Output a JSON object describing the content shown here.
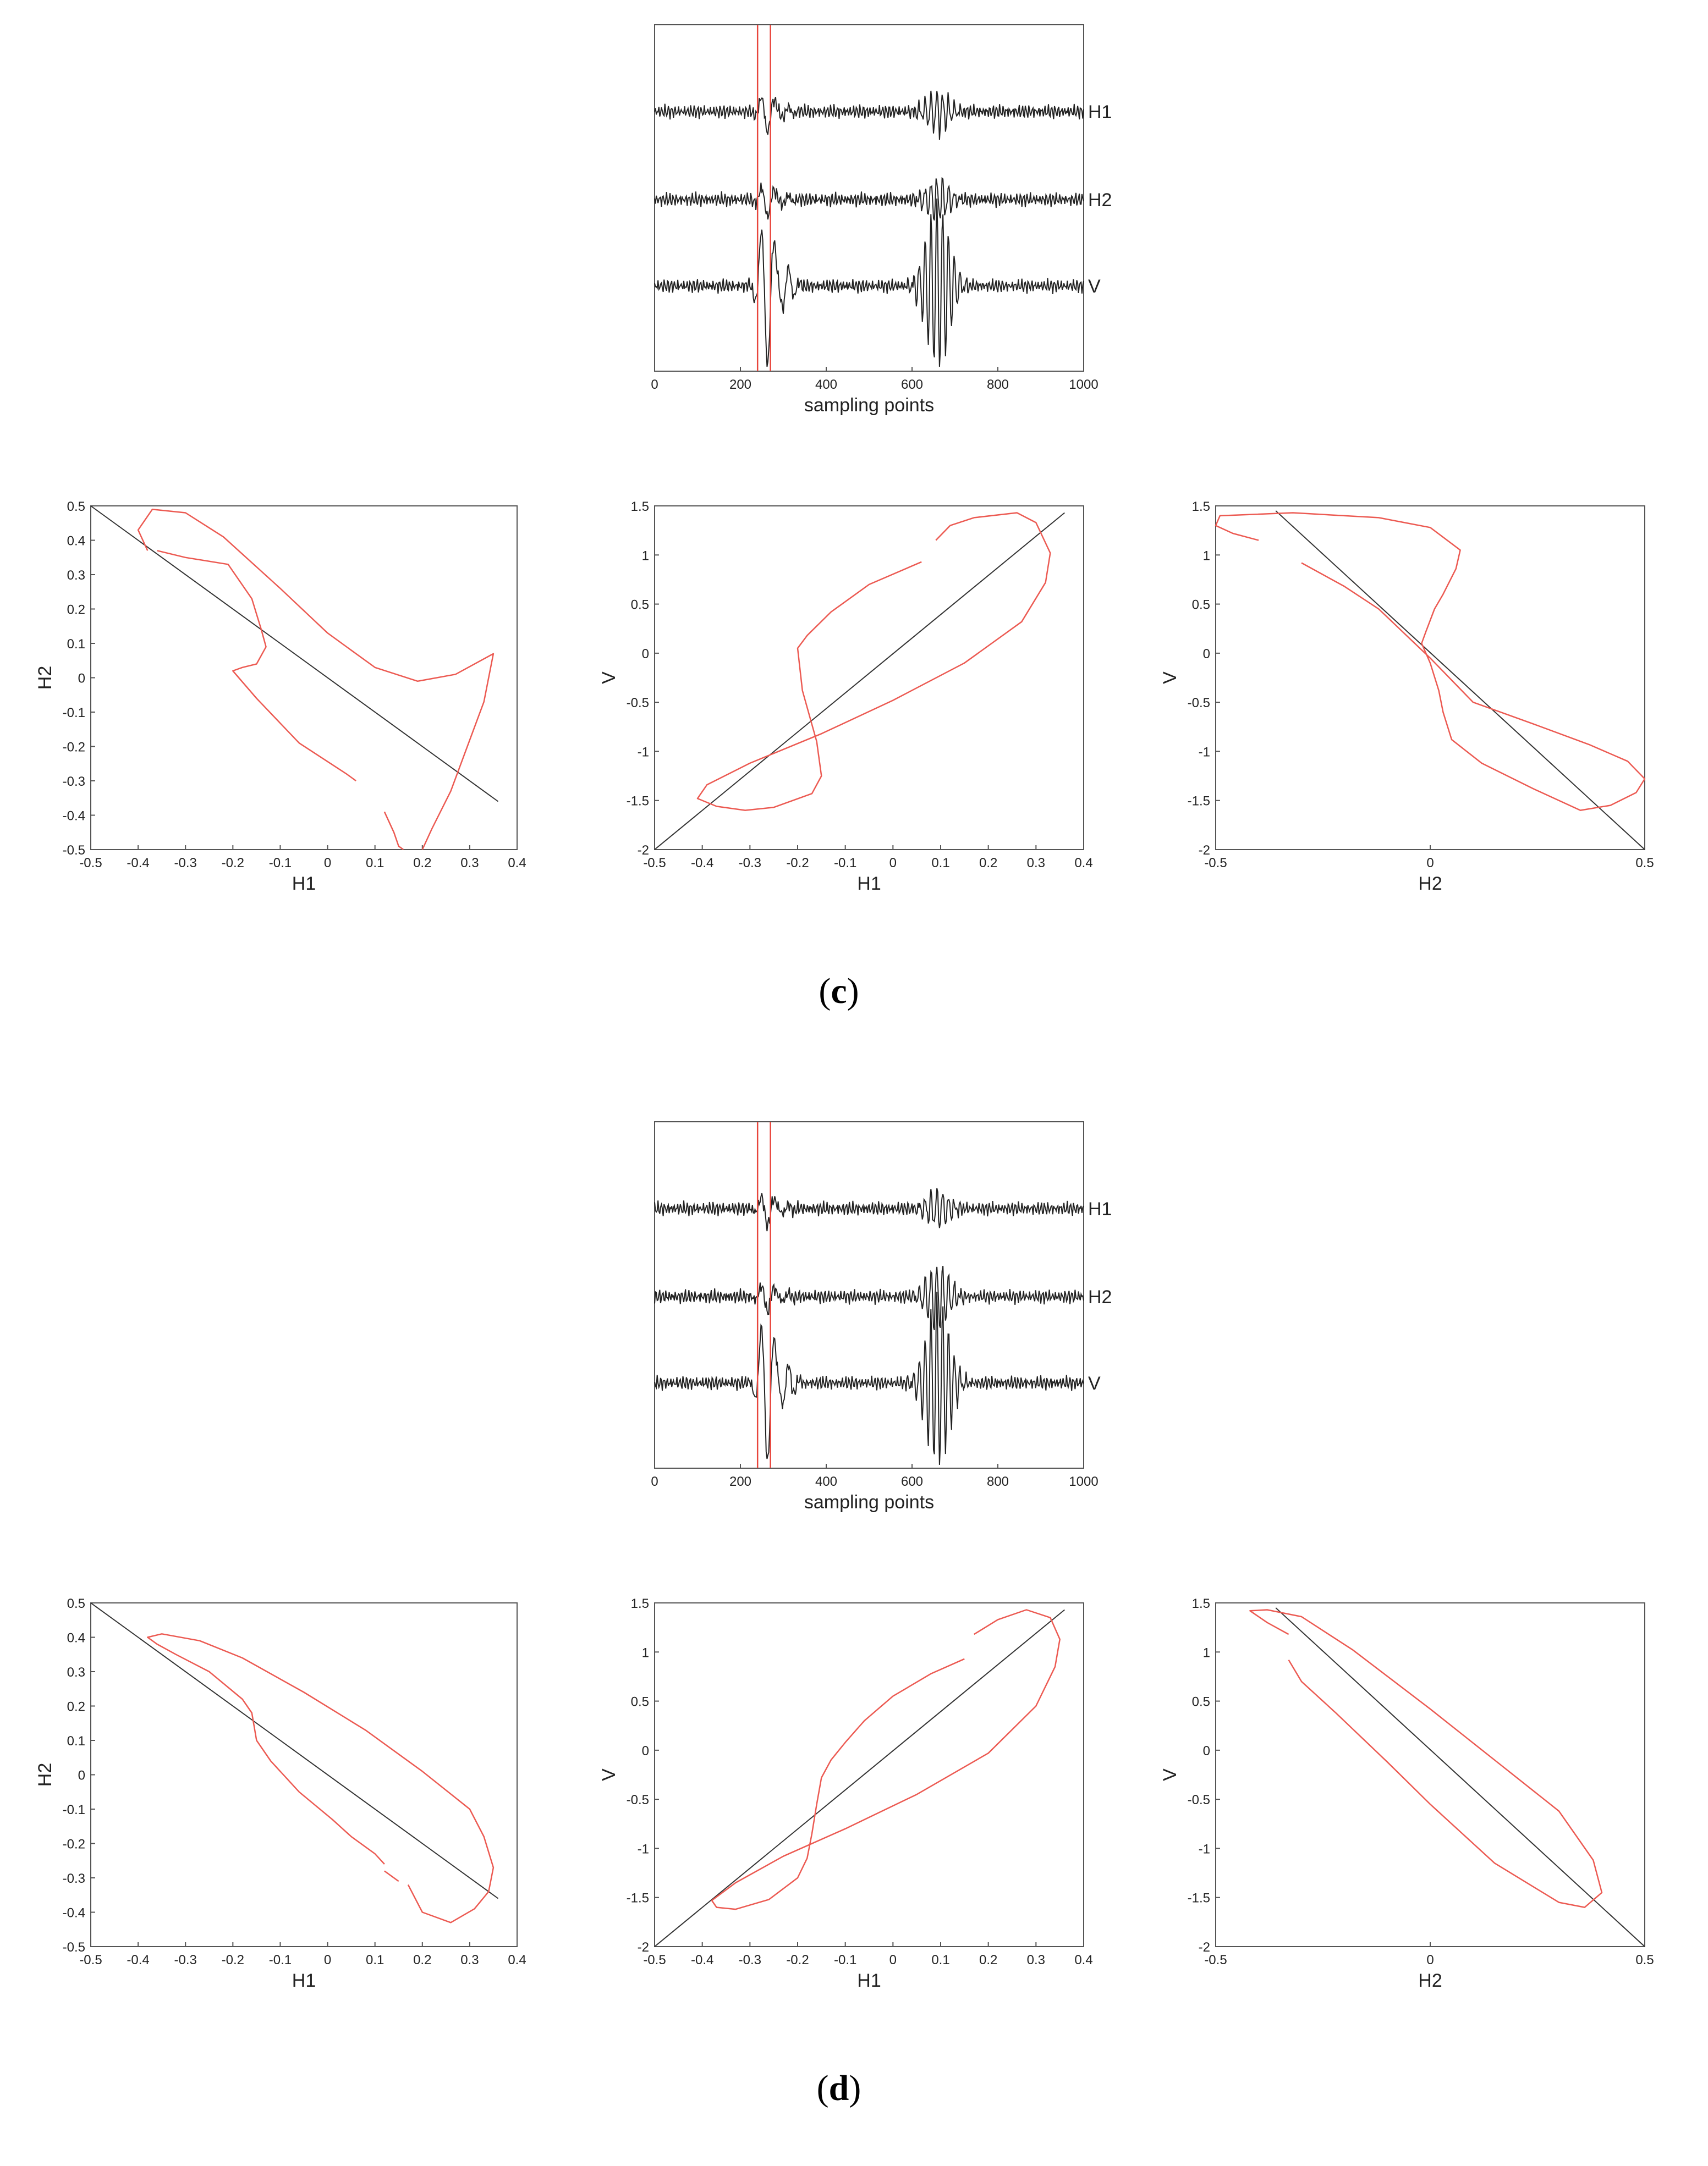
{
  "panels": [
    {
      "caption_letter": "c",
      "waveform": {
        "xlabel": "sampling points",
        "xticks": [
          0,
          200,
          400,
          600,
          800,
          1000
        ],
        "xlim": [
          0,
          1000
        ],
        "window_lines_x": [
          240,
          270
        ],
        "traces": [
          {
            "name": "H1",
            "early_amp": 0.55,
            "late_amp": 0.55
          },
          {
            "name": "H2",
            "early_amp": 0.45,
            "late_amp": 0.55
          },
          {
            "name": "V",
            "early_amp": 2.1,
            "late_amp": 2.2
          }
        ]
      },
      "particle_motion": [
        {
          "xlabel": "H1",
          "ylabel": "H2",
          "xlim": [
            -0.5,
            0.4
          ],
          "ylim": [
            -0.5,
            0.5
          ],
          "xticks": [
            "-0.5",
            "-0.4",
            "-0.3",
            "-0.2",
            "-0.1",
            "0",
            "0.1",
            "0.2",
            "0.3",
            "0.4"
          ],
          "yticks": [
            "0.5",
            "0.4",
            "0.3",
            "0.2",
            "0.1",
            "0",
            "-0.1",
            "-0.2",
            "-0.3",
            "-0.4",
            "-0.5"
          ],
          "line": [
            [
              -0.5,
              0.5
            ],
            [
              0.36,
              -0.36
            ]
          ],
          "curves": [
            [
              [
                -0.38,
                0.37
              ],
              [
                -0.4,
                0.43
              ],
              [
                -0.37,
                0.49
              ],
              [
                -0.3,
                0.48
              ],
              [
                -0.22,
                0.41
              ],
              [
                -0.1,
                0.26
              ],
              [
                0.0,
                0.13
              ],
              [
                0.1,
                0.03
              ],
              [
                0.19,
                -0.01
              ],
              [
                0.27,
                0.01
              ],
              [
                0.35,
                0.07
              ],
              [
                0.33,
                -0.07
              ],
              [
                0.26,
                -0.33
              ],
              [
                0.22,
                -0.44
              ],
              [
                0.2,
                -0.5
              ]
            ],
            [
              [
                0.16,
                -0.5
              ],
              [
                0.15,
                -0.49
              ],
              [
                0.14,
                -0.45
              ],
              [
                0.12,
                -0.39
              ]
            ],
            [
              [
                -0.36,
                0.37
              ],
              [
                -0.3,
                0.35
              ],
              [
                -0.21,
                0.33
              ],
              [
                -0.16,
                0.23
              ],
              [
                -0.14,
                0.14
              ],
              [
                -0.13,
                0.09
              ],
              [
                -0.15,
                0.04
              ],
              [
                -0.18,
                0.03
              ],
              [
                -0.2,
                0.02
              ],
              [
                -0.15,
                -0.06
              ],
              [
                -0.06,
                -0.19
              ],
              [
                0.04,
                -0.28
              ],
              [
                0.06,
                -0.3
              ]
            ]
          ]
        },
        {
          "xlabel": "H1",
          "ylabel": "V",
          "xlim": [
            -0.5,
            0.4
          ],
          "ylim": [
            -2,
            1.5
          ],
          "xticks": [
            "-0.5",
            "-0.4",
            "-0.3",
            "-0.2",
            "-0.1",
            "0",
            "0.1",
            "0.2",
            "0.3",
            "0.4"
          ],
          "yticks": [
            "1.5",
            "1",
            "0.5",
            "0",
            "-0.5",
            "-1",
            "-1.5",
            "-2"
          ],
          "line": [
            [
              -0.5,
              -2.0
            ],
            [
              0.36,
              1.43
            ]
          ],
          "curves": [
            [
              [
                0.06,
                0.93
              ],
              [
                -0.05,
                0.7
              ],
              [
                -0.13,
                0.42
              ],
              [
                -0.18,
                0.18
              ],
              [
                -0.2,
                0.05
              ],
              [
                -0.19,
                -0.38
              ],
              [
                -0.16,
                -0.9
              ],
              [
                -0.15,
                -1.25
              ],
              [
                -0.17,
                -1.43
              ],
              [
                -0.25,
                -1.57
              ],
              [
                -0.31,
                -1.6
              ],
              [
                -0.37,
                -1.56
              ],
              [
                -0.41,
                -1.48
              ],
              [
                -0.39,
                -1.34
              ],
              [
                -0.3,
                -1.12
              ],
              [
                -0.15,
                -0.82
              ],
              [
                0.0,
                -0.48
              ],
              [
                0.15,
                -0.1
              ],
              [
                0.27,
                0.32
              ],
              [
                0.32,
                0.72
              ],
              [
                0.33,
                1.02
              ],
              [
                0.3,
                1.33
              ],
              [
                0.26,
                1.43
              ],
              [
                0.17,
                1.38
              ],
              [
                0.12,
                1.3
              ],
              [
                0.09,
                1.15
              ]
            ]
          ]
        },
        {
          "xlabel": "H2",
          "ylabel": "V",
          "xlim": [
            -0.5,
            0.5
          ],
          "ylim": [
            -2,
            1.5
          ],
          "xticks": [
            "-0.5",
            "0",
            "0.5"
          ],
          "yticks": [
            "1.5",
            "1",
            "0.5",
            "0",
            "-0.5",
            "-1",
            "-1.5",
            "-2"
          ],
          "line": [
            [
              -0.36,
              1.45
            ],
            [
              0.5,
              -2.0
            ]
          ],
          "curves": [
            [
              [
                -0.4,
                1.15
              ],
              [
                -0.46,
                1.22
              ],
              [
                -0.5,
                1.3
              ],
              [
                -0.49,
                1.4
              ],
              [
                -0.32,
                1.43
              ],
              [
                -0.12,
                1.38
              ],
              [
                0.0,
                1.28
              ],
              [
                0.07,
                1.05
              ],
              [
                0.06,
                0.86
              ],
              [
                0.03,
                0.6
              ],
              [
                0.01,
                0.45
              ],
              [
                -0.01,
                0.22
              ],
              [
                -0.02,
                0.1
              ],
              [
                0.0,
                -0.1
              ],
              [
                0.02,
                -0.38
              ],
              [
                0.03,
                -0.6
              ],
              [
                0.05,
                -0.88
              ],
              [
                0.12,
                -1.12
              ],
              [
                0.24,
                -1.38
              ],
              [
                0.35,
                -1.6
              ],
              [
                0.42,
                -1.55
              ],
              [
                0.48,
                -1.42
              ],
              [
                0.5,
                -1.28
              ],
              [
                0.46,
                -1.1
              ],
              [
                0.37,
                -0.93
              ],
              [
                0.24,
                -0.72
              ],
              [
                0.1,
                -0.5
              ],
              [
                0.0,
                -0.05
              ],
              [
                -0.12,
                0.45
              ],
              [
                -0.2,
                0.68
              ],
              [
                -0.3,
                0.92
              ]
            ]
          ]
        }
      ]
    },
    {
      "caption_letter": "d",
      "waveform": {
        "xlabel": "sampling points",
        "xticks": [
          0,
          200,
          400,
          600,
          800,
          1000
        ],
        "xlim": [
          0,
          1000
        ],
        "window_lines_x": [
          240,
          270
        ],
        "traces": [
          {
            "name": "H1",
            "early_amp": 0.45,
            "late_amp": 0.5
          },
          {
            "name": "H2",
            "early_amp": 0.4,
            "late_amp": 0.85
          },
          {
            "name": "V",
            "early_amp": 2.1,
            "late_amp": 2.2
          }
        ]
      },
      "particle_motion": [
        {
          "xlabel": "H1",
          "ylabel": "H2",
          "xlim": [
            -0.5,
            0.4
          ],
          "ylim": [
            -0.5,
            0.5
          ],
          "xticks": [
            "-0.5",
            "-0.4",
            "-0.3",
            "-0.2",
            "-0.1",
            "0",
            "0.1",
            "0.2",
            "0.3",
            "0.4"
          ],
          "yticks": [
            "0.5",
            "0.4",
            "0.3",
            "0.2",
            "0.1",
            "0",
            "-0.1",
            "-0.2",
            "-0.3",
            "-0.4",
            "-0.5"
          ],
          "line": [
            [
              -0.5,
              0.5
            ],
            [
              0.36,
              -0.36
            ]
          ],
          "curves": [
            [
              [
                -0.36,
                0.38
              ],
              [
                -0.38,
                0.4
              ],
              [
                -0.35,
                0.41
              ],
              [
                -0.27,
                0.39
              ],
              [
                -0.18,
                0.34
              ],
              [
                -0.05,
                0.24
              ],
              [
                0.08,
                0.13
              ],
              [
                0.2,
                0.01
              ],
              [
                0.3,
                -0.1
              ],
              [
                0.33,
                -0.18
              ],
              [
                0.35,
                -0.27
              ],
              [
                0.34,
                -0.34
              ],
              [
                0.31,
                -0.39
              ],
              [
                0.26,
                -0.43
              ],
              [
                0.2,
                -0.4
              ],
              [
                0.17,
                -0.32
              ]
            ],
            [
              [
                0.15,
                -0.31
              ],
              [
                0.12,
                -0.28
              ]
            ],
            [
              [
                -0.36,
                0.38
              ],
              [
                -0.32,
                0.35
              ],
              [
                -0.25,
                0.3
              ],
              [
                -0.18,
                0.22
              ],
              [
                -0.16,
                0.18
              ],
              [
                -0.15,
                0.1
              ],
              [
                -0.12,
                0.04
              ],
              [
                -0.06,
                -0.05
              ],
              [
                0.01,
                -0.13
              ],
              [
                0.05,
                -0.18
              ],
              [
                0.1,
                -0.23
              ],
              [
                0.12,
                -0.26
              ]
            ]
          ]
        },
        {
          "xlabel": "H1",
          "ylabel": "V",
          "xlim": [
            -0.5,
            0.4
          ],
          "ylim": [
            -2,
            1.5
          ],
          "xticks": [
            "-0.5",
            "-0.4",
            "-0.3",
            "-0.2",
            "-0.1",
            "0",
            "0.1",
            "0.2",
            "0.3",
            "0.4"
          ],
          "yticks": [
            "1.5",
            "1",
            "0.5",
            "0",
            "-0.5",
            "-1",
            "-1.5",
            "-2"
          ],
          "line": [
            [
              -0.5,
              -2.0
            ],
            [
              0.36,
              1.43
            ]
          ],
          "curves": [
            [
              [
                0.15,
                0.93
              ],
              [
                0.08,
                0.78
              ],
              [
                0.0,
                0.55
              ],
              [
                -0.06,
                0.3
              ],
              [
                -0.1,
                0.08
              ],
              [
                -0.13,
                -0.1
              ],
              [
                -0.15,
                -0.28
              ],
              [
                -0.16,
                -0.55
              ],
              [
                -0.17,
                -0.85
              ],
              [
                -0.18,
                -1.1
              ],
              [
                -0.2,
                -1.3
              ],
              [
                -0.26,
                -1.52
              ],
              [
                -0.33,
                -1.62
              ],
              [
                -0.37,
                -1.6
              ],
              [
                -0.38,
                -1.53
              ],
              [
                -0.33,
                -1.35
              ],
              [
                -0.23,
                -1.08
              ],
              [
                -0.1,
                -0.8
              ],
              [
                0.05,
                -0.45
              ],
              [
                0.2,
                -0.03
              ],
              [
                0.3,
                0.45
              ],
              [
                0.34,
                0.85
              ],
              [
                0.35,
                1.13
              ],
              [
                0.33,
                1.35
              ],
              [
                0.28,
                1.43
              ],
              [
                0.22,
                1.33
              ],
              [
                0.17,
                1.18
              ]
            ]
          ]
        },
        {
          "xlabel": "H2",
          "ylabel": "V",
          "xlim": [
            -0.5,
            0.5
          ],
          "ylim": [
            -2,
            1.5
          ],
          "xticks": [
            "-0.5",
            "0",
            "0.5"
          ],
          "yticks": [
            "1.5",
            "1",
            "0.5",
            "0",
            "-0.5",
            "-1",
            "-1.5",
            "-2"
          ],
          "line": [
            [
              -0.36,
              1.45
            ],
            [
              0.5,
              -2.0
            ]
          ],
          "curves": [
            [
              [
                -0.33,
                1.18
              ],
              [
                -0.38,
                1.3
              ],
              [
                -0.42,
                1.42
              ],
              [
                -0.38,
                1.43
              ],
              [
                -0.3,
                1.36
              ],
              [
                -0.18,
                1.02
              ],
              [
                0.0,
                0.42
              ],
              [
                0.15,
                -0.1
              ],
              [
                0.3,
                -0.62
              ],
              [
                0.38,
                -1.12
              ],
              [
                0.4,
                -1.45
              ],
              [
                0.36,
                -1.6
              ],
              [
                0.3,
                -1.55
              ],
              [
                0.15,
                -1.15
              ],
              [
                0.0,
                -0.55
              ],
              [
                -0.1,
                -0.12
              ],
              [
                -0.22,
                0.38
              ],
              [
                -0.3,
                0.7
              ],
              [
                -0.33,
                0.92
              ]
            ]
          ]
        }
      ]
    }
  ]
}
